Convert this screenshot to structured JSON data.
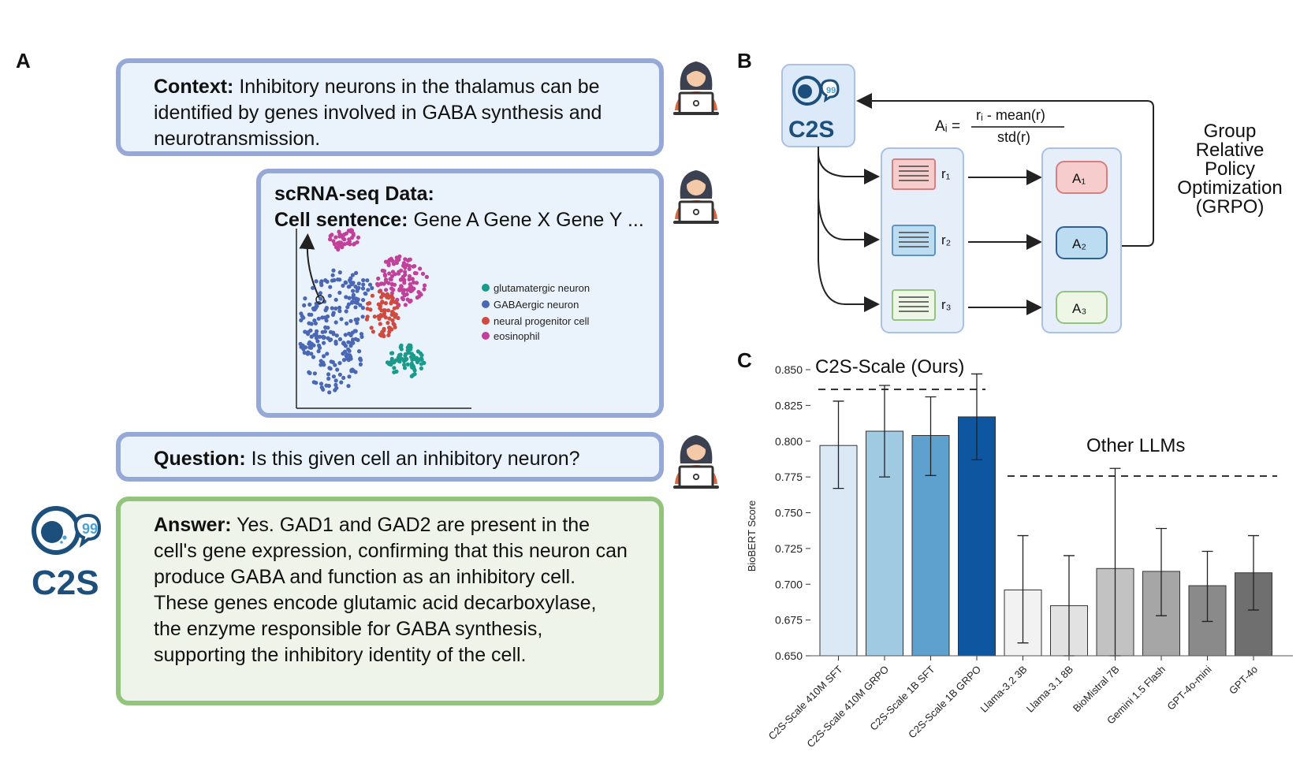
{
  "panels": {
    "a": "A",
    "b": "B",
    "c": "C"
  },
  "context": {
    "label": "Context:",
    "text": " Inhibitory neurons in the thalamus can be identified by genes involved in GABA synthesis and neurotransmission."
  },
  "data_bubble": {
    "title": "scRNA-seq Data:",
    "cell_label": "Cell sentence:",
    "cell_text": " Gene A Gene X Gene Y ..."
  },
  "legend": [
    {
      "label": "glutamatergic neuron",
      "color": "#1a9a8a"
    },
    {
      "label": "GABAergic neuron",
      "color": "#4a67b5"
    },
    {
      "label": "neural progenitor cell",
      "color": "#cf4a3f"
    },
    {
      "label": "eosinophil",
      "color": "#c2409a"
    }
  ],
  "question": {
    "label": "Question:",
    "text": " Is this given cell an inhibitory neuron?"
  },
  "answer": {
    "label": "Answer:",
    "text": " Yes. GAD1 and GAD2 are present in the cell's gene expression, confirming that this neuron can produce GABA and function as an inhibitory cell. These genes encode glutamic acid decarboxylase, the enzyme responsible for GABA synthesis, supporting the inhibitory identity of the cell."
  },
  "logo_text": "C2S",
  "grpo": {
    "formula_lhs": "Aᵢ =",
    "formula_num": "rᵢ - mean(r)",
    "formula_den": "std(r)",
    "rewards": [
      "r₁",
      "r₂",
      "r₃"
    ],
    "advantages": [
      "A₁",
      "A₂",
      "A₃"
    ],
    "label_lines": [
      "Group",
      "Relative",
      "Policy",
      "Optimization",
      "(GRPO)"
    ]
  },
  "colors": {
    "blue_border": "#96a9d6",
    "green_border": "#93c47d",
    "logo": "#1c4f7c"
  },
  "chart_data": {
    "type": "bar",
    "ylabel": "BioBERT Score",
    "ylim": [
      0.65,
      0.85
    ],
    "yticks": [
      "0.650",
      "0.675",
      "0.700",
      "0.725",
      "0.750",
      "0.775",
      "0.800",
      "0.825",
      "0.850"
    ],
    "group_labels": [
      "C2S-Scale (Ours)",
      "Other LLMs"
    ],
    "categories": [
      "C2S-Scale 410M SFT",
      "C2S-Scale 410M GRPO",
      "C2S-Scale 1B SFT",
      "C2S-Scale 1B GRPO",
      "Llama-3.2 3B",
      "Llama-3.1 8B",
      "BioMistral 7B",
      "Gemini 1.5 Flash",
      "GPT-4o-mini",
      "GPT-4o"
    ],
    "values": [
      0.797,
      0.807,
      0.804,
      0.817,
      0.696,
      0.685,
      0.711,
      0.709,
      0.699,
      0.708
    ],
    "err_low": [
      0.767,
      0.775,
      0.776,
      0.787,
      0.659,
      0.65,
      0.65,
      0.678,
      0.674,
      0.682
    ],
    "err_high": [
      0.828,
      0.839,
      0.831,
      0.847,
      0.734,
      0.72,
      0.781,
      0.739,
      0.723,
      0.734
    ],
    "colors": [
      "#dbe8f5",
      "#9fcae1",
      "#5ea1cf",
      "#0f56a0",
      "#f2f2f2",
      "#e2e2e2",
      "#c2c2c2",
      "#a6a6a6",
      "#8a8a8a",
      "#6f6f6f"
    ]
  }
}
